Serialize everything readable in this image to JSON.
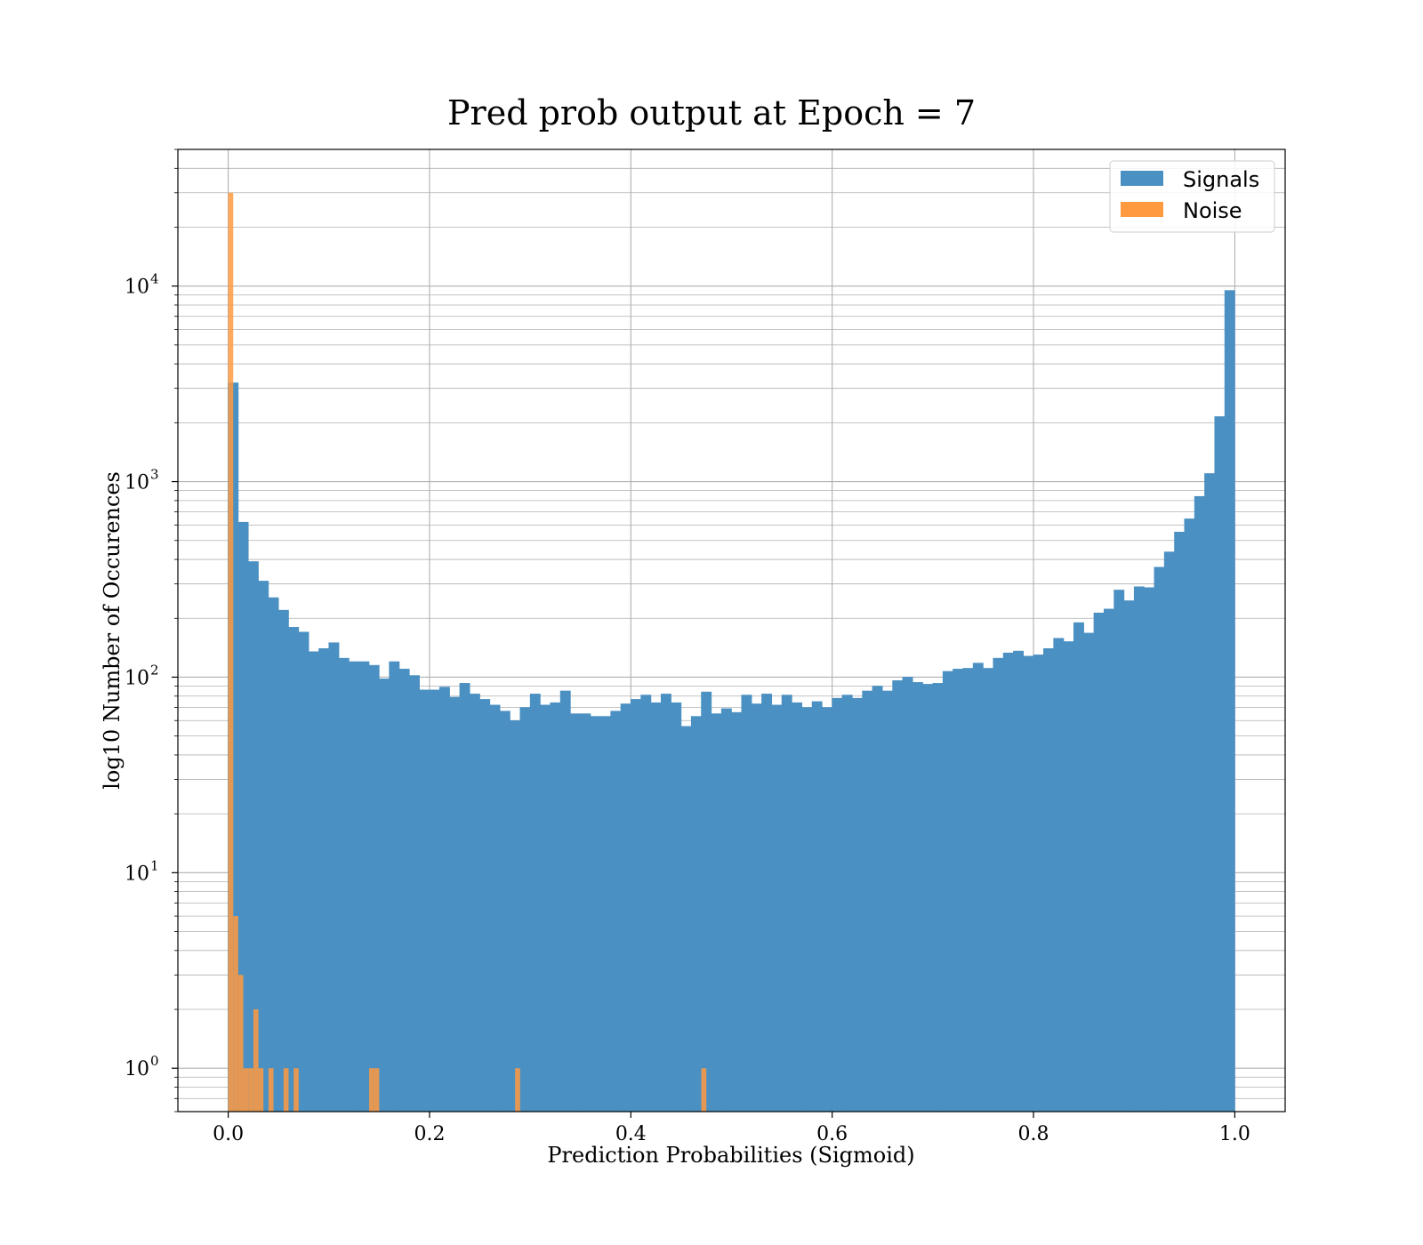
{
  "chart_data": {
    "type": "histogram",
    "title": "Pred prob output at Epoch = 7",
    "xlabel": "Prediction Probabilities (Sigmoid)",
    "ylabel": "log10 Number of Occurences",
    "yscale": "log",
    "xlim": [
      -0.05,
      1.05
    ],
    "ylim": [
      0.6,
      50000
    ],
    "grid": true,
    "legend_position": "top-right",
    "x_ticks": [
      "0.0",
      "0.2",
      "0.4",
      "0.6",
      "0.8",
      "1.0"
    ],
    "y_ticks": [
      {
        "value": 1,
        "base": "10",
        "exp": "0"
      },
      {
        "value": 10,
        "base": "10",
        "exp": "1"
      },
      {
        "value": 100,
        "base": "10",
        "exp": "2"
      },
      {
        "value": 1000,
        "base": "10",
        "exp": "3"
      },
      {
        "value": 10000,
        "base": "10",
        "exp": "4"
      }
    ],
    "series": [
      {
        "name": "Signals",
        "color": "#4a90c2",
        "bin_width": 0.01,
        "bin_start": 0.0,
        "counts": [
          3200,
          620,
          390,
          310,
          255,
          220,
          180,
          170,
          135,
          140,
          150,
          125,
          120,
          120,
          115,
          98,
          120,
          110,
          102,
          86,
          86,
          89,
          79,
          93,
          82,
          77,
          72,
          67,
          60,
          70,
          82,
          72,
          74,
          85,
          65,
          65,
          63,
          63,
          67,
          73,
          77,
          81,
          74,
          82,
          74,
          56,
          63,
          84,
          65,
          69,
          66,
          81,
          73,
          82,
          72,
          81,
          74,
          70,
          75,
          70,
          78,
          81,
          78,
          85,
          90,
          85,
          96,
          100,
          94,
          92,
          93,
          107,
          110,
          111,
          118,
          111,
          125,
          133,
          136,
          128,
          130,
          140,
          158,
          152,
          190,
          168,
          213,
          223,
          279,
          246,
          290,
          287,
          365,
          437,
          552,
          645,
          840,
          1100,
          2150,
          9500
        ]
      },
      {
        "name": "Noise",
        "color": "#ff9a40",
        "bins": [
          {
            "x0": 0.0,
            "x1": 0.005,
            "count": 30000
          },
          {
            "x0": 0.005,
            "x1": 0.01,
            "count": 6
          },
          {
            "x0": 0.01,
            "x1": 0.015,
            "count": 3
          },
          {
            "x0": 0.015,
            "x1": 0.02,
            "count": 1
          },
          {
            "x0": 0.02,
            "x1": 0.025,
            "count": 1
          },
          {
            "x0": 0.025,
            "x1": 0.03,
            "count": 2
          },
          {
            "x0": 0.03,
            "x1": 0.035,
            "count": 1
          },
          {
            "x0": 0.04,
            "x1": 0.045,
            "count": 1
          },
          {
            "x0": 0.055,
            "x1": 0.06,
            "count": 1
          },
          {
            "x0": 0.065,
            "x1": 0.07,
            "count": 1
          },
          {
            "x0": 0.14,
            "x1": 0.145,
            "count": 1
          },
          {
            "x0": 0.145,
            "x1": 0.15,
            "count": 1
          },
          {
            "x0": 0.285,
            "x1": 0.29,
            "count": 1
          },
          {
            "x0": 0.47,
            "x1": 0.475,
            "count": 1
          }
        ]
      }
    ]
  }
}
